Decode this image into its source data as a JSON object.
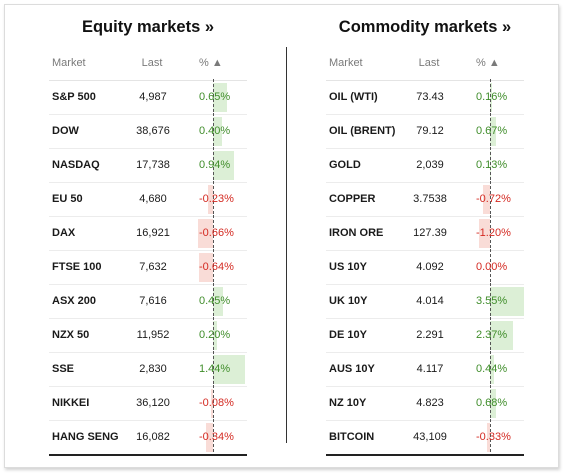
{
  "equity": {
    "title": "Equity markets »",
    "headers": {
      "market": "Market",
      "last": "Last",
      "pct": "% ▲"
    },
    "rows": [
      {
        "market": "S&P 500",
        "last": "4,987",
        "pct": "0.65%",
        "value": 0.65
      },
      {
        "market": "DOW",
        "last": "38,676",
        "pct": "0.40%",
        "value": 0.4
      },
      {
        "market": "NASDAQ",
        "last": "17,738",
        "pct": "0.94%",
        "value": 0.94
      },
      {
        "market": "EU 50",
        "last": "4,680",
        "pct": "-0.23%",
        "value": -0.23
      },
      {
        "market": "DAX",
        "last": "16,921",
        "pct": "-0.66%",
        "value": -0.66
      },
      {
        "market": "FTSE 100",
        "last": "7,632",
        "pct": "-0.64%",
        "value": -0.64
      },
      {
        "market": "ASX 200",
        "last": "7,616",
        "pct": "0.45%",
        "value": 0.45
      },
      {
        "market": "NZX 50",
        "last": "11,952",
        "pct": "0.20%",
        "value": 0.2
      },
      {
        "market": "SSE",
        "last": "2,830",
        "pct": "1.44%",
        "value": 1.44
      },
      {
        "market": "NIKKEI",
        "last": "36,120",
        "pct": "-0.08%",
        "value": -0.08
      },
      {
        "market": "HANG SENG",
        "last": "16,082",
        "pct": "-0.34%",
        "value": -0.34
      }
    ]
  },
  "commodity": {
    "title": "Commodity markets »",
    "headers": {
      "market": "Market",
      "last": "Last",
      "pct": "% ▲"
    },
    "rows": [
      {
        "market": "OIL (WTI)",
        "last": "73.43",
        "pct": "0.16%",
        "value": 0.16
      },
      {
        "market": "OIL (BRENT)",
        "last": "79.12",
        "pct": "0.67%",
        "value": 0.67
      },
      {
        "market": "GOLD",
        "last": "2,039",
        "pct": "0.13%",
        "value": 0.13
      },
      {
        "market": "COPPER",
        "last": "3.7538",
        "pct": "-0.72%",
        "value": -0.72
      },
      {
        "market": "IRON ORE",
        "last": "127.39",
        "pct": "-1.20%",
        "value": -1.2
      },
      {
        "market": "US 10Y",
        "last": "4.092",
        "pct": "0.00%",
        "value": 0.0
      },
      {
        "market": "UK 10Y",
        "last": "4.014",
        "pct": "3.55%",
        "value": 3.55
      },
      {
        "market": "DE 10Y",
        "last": "2.291",
        "pct": "2.37%",
        "value": 2.37
      },
      {
        "market": "AUS 10Y",
        "last": "4.117",
        "pct": "0.44%",
        "value": 0.44
      },
      {
        "market": "NZ 10Y",
        "last": "4.823",
        "pct": "0.68%",
        "value": 0.68
      },
      {
        "market": "BITCOIN",
        "last": "43,109",
        "pct": "-0.33%",
        "value": -0.33
      }
    ]
  },
  "colors": {
    "positive": "#3f8d2a",
    "negative": "#d42a22",
    "positive_bar": "#dcefd6",
    "negative_bar": "#f9dcd7"
  }
}
